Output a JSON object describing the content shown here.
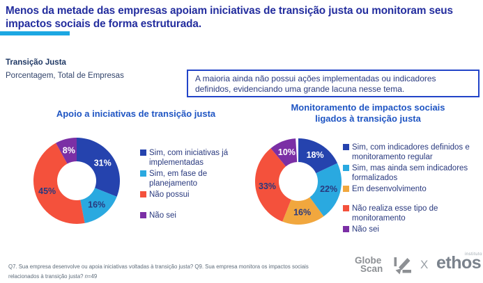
{
  "title": "Menos da metade das empresas apoiam iniciativas de transição justa ou monitoram seus impactos sociais de forma estruturada.",
  "section": {
    "heading": "Transição Justa",
    "subheading": "Porcentagem, Total de Empresas"
  },
  "callout": {
    "text": "A maioria ainda não possui ações implementadas ou indicadores definidos, evidenciando uma grande lacuna nesse tema."
  },
  "colors": {
    "title_navy": "#232D9E",
    "chart_title_blue": "#1F55C3",
    "accent_cyan": "#1CA7E2",
    "callout_border": "#2244C8",
    "legend_text": "#29397E",
    "dark_blue": "#2543AE",
    "cyan": "#2AA9E0",
    "red": "#F4513C",
    "purple": "#7B2FA5",
    "yellow": "#F1A73E"
  },
  "chart_data": [
    {
      "type": "donut",
      "title_lines": [
        "Apoio a iniciativas de transição justa"
      ],
      "segments": [
        {
          "label": "Sim, com iniciativas já implementadas",
          "value": 31,
          "pct_label": "31%",
          "color": "#2543AE",
          "label_color": "#FFFFFF"
        },
        {
          "label": "Sim, em fase de planejamento",
          "value": 16,
          "pct_label": "16%",
          "color": "#2AA9E0",
          "label_color": "#29397E"
        },
        {
          "label": "Não possui",
          "value": 45,
          "pct_label": "45%",
          "color": "#F4513C",
          "label_color": "#29397E"
        },
        {
          "label": "Não sei",
          "value": 8,
          "pct_label": "8%",
          "color": "#7B2FA5",
          "label_color": "#FFFFFF"
        }
      ],
      "legend_gap_before_index": 3
    },
    {
      "type": "donut",
      "title_lines": [
        "Monitoramento de impactos sociais",
        "ligados à transição justa"
      ],
      "segments": [
        {
          "label": "Sim, com indicadores definidos e monitoramento regular",
          "value": 18,
          "pct_label": "18%",
          "color": "#2543AE",
          "label_color": "#FFFFFF"
        },
        {
          "label": "Sim, mas ainda sem indicadores formalizados",
          "value": 22,
          "pct_label": "22%",
          "color": "#2AA9E0",
          "label_color": "#29397E"
        },
        {
          "label": "Em desenvolvimento",
          "value": 16,
          "pct_label": "16%",
          "color": "#F1A73E",
          "label_color": "#29397E"
        },
        {
          "label": "Não realiza esse tipo de monitoramento",
          "value": 33,
          "pct_label": "33%",
          "color": "#F4513C",
          "label_color": "#29397E"
        },
        {
          "label": "Não sei",
          "value": 10,
          "pct_label": "10%",
          "color": "#7B2FA5",
          "label_color": "#FFFFFF"
        }
      ],
      "legend_gap_before_index": 3
    }
  ],
  "footnote": {
    "line1": "Q7. Sua empresa desenvolve ou apoia iniciativas voltadas à transição justa? Q9. Sua empresa monitora os impactos sociais",
    "line2_prefix": "relacionados à transição justa? ",
    "n_italic": "n",
    "n_value": "=49"
  },
  "logos": {
    "globescan_line1": "Globe",
    "globescan_line2": "Scan",
    "separator": "X",
    "ethos_sup": "instituto",
    "ethos_word": "ethos"
  }
}
